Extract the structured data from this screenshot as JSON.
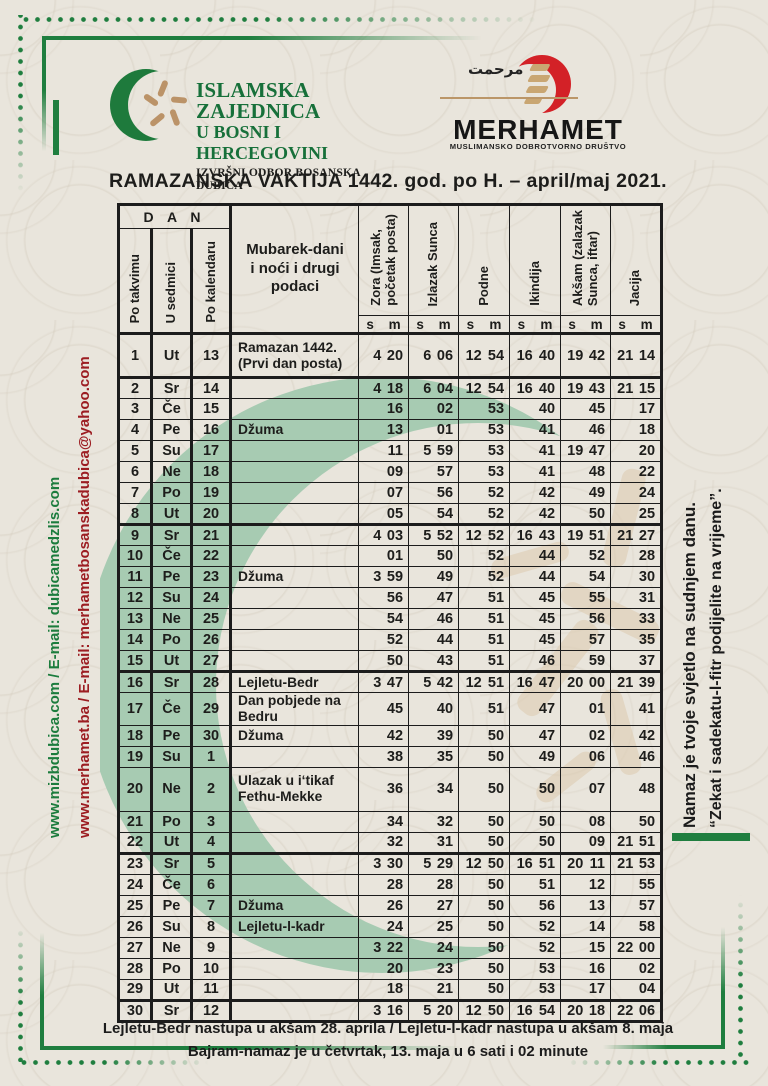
{
  "colors": {
    "page_bg": "#e9e5dc",
    "border_green": "#1f7e3f",
    "logo_green": "#1e7a3c",
    "watermark_green": "#a7cbb2",
    "merhamet_red": "#d32127",
    "tan": "#bb9668",
    "maroon_text": "#9c1d22",
    "green_text": "#1c7c3d",
    "ink": "#1d1d1b"
  },
  "header": {
    "org_line1": "ISLAMSKA ZAJEDNICA",
    "org_line2": "U BOSNI I HERCEGOVINI",
    "org_line3": "IZVRŠNI ODBOR BOSANSKA DUBICA",
    "merhamet_arabic": "مرحمت",
    "merhamet_name": "MERHAMET",
    "merhamet_sub": "MUSLIMANSKO DOBROTVORNO DRUŠTVO",
    "title": "RAMAZANSKA VAKTIJA 1442. god. po H. – april/maj 2021."
  },
  "side_left": {
    "green_text": "www.mizbdubica.com / E-mail: dubicamedzlis.com",
    "red_text": "www.merhamet.ba / E-mail: merhametbosanskadubica@yahoo.com"
  },
  "side_right": {
    "line1": "Namaz je tvoje svjetlo na sudnjem danu.",
    "line2": "“Zekat i sadekatu-l-fitr podijelite na vrijeme”."
  },
  "table": {
    "dan_header": "D A N",
    "day_cols": [
      "Po takvimu",
      "U sedmici",
      "Po kalendaru"
    ],
    "notes_header": "Mubarek-dani\ni noći i drugi\npodaci",
    "time_cols": [
      "Zora (Imsak,\npočetak posta)",
      "Izlazak Sunca",
      "Podne",
      "Ikindija",
      "Akšam (zalazak\nSunca, iftar)",
      "Jacija"
    ],
    "sub_s": "s",
    "sub_m": "m",
    "rows": [
      {
        "t": "1",
        "d": "Ut",
        "k": "13",
        "note": "Ramazan 1442.\n(Prvi dan posta)",
        "tall": true,
        "sep": false,
        "times": [
          "4",
          "20",
          "6",
          "06",
          "12",
          "54",
          "16",
          "40",
          "19",
          "42",
          "21",
          "14"
        ]
      },
      {
        "t": "2",
        "d": "Sr",
        "k": "14",
        "note": "",
        "sep": true,
        "times": [
          "4",
          "18",
          "6",
          "04",
          "12",
          "54",
          "16",
          "40",
          "19",
          "43",
          "21",
          "15"
        ]
      },
      {
        "t": "3",
        "d": "Če",
        "k": "15",
        "note": "",
        "times": [
          "",
          "16",
          "",
          "02",
          "",
          "53",
          "",
          "40",
          "",
          "45",
          "",
          "17"
        ]
      },
      {
        "t": "4",
        "d": "Pe",
        "k": "16",
        "note": "Džuma",
        "times": [
          "",
          "13",
          "",
          "01",
          "",
          "53",
          "",
          "41",
          "",
          "46",
          "",
          "18"
        ]
      },
      {
        "t": "5",
        "d": "Su",
        "k": "17",
        "note": "",
        "times": [
          "",
          "11",
          "5",
          "59",
          "",
          "53",
          "",
          "41",
          "19",
          "47",
          "",
          "20"
        ]
      },
      {
        "t": "6",
        "d": "Ne",
        "k": "18",
        "note": "",
        "times": [
          "",
          "09",
          "",
          "57",
          "",
          "53",
          "",
          "41",
          "",
          "48",
          "",
          "22"
        ]
      },
      {
        "t": "7",
        "d": "Po",
        "k": "19",
        "note": "",
        "times": [
          "",
          "07",
          "",
          "56",
          "",
          "52",
          "",
          "42",
          "",
          "49",
          "",
          "24"
        ]
      },
      {
        "t": "8",
        "d": "Ut",
        "k": "20",
        "note": "",
        "times": [
          "",
          "05",
          "",
          "54",
          "",
          "52",
          "",
          "42",
          "",
          "50",
          "",
          "25"
        ]
      },
      {
        "t": "9",
        "d": "Sr",
        "k": "21",
        "note": "",
        "sep": true,
        "times": [
          "4",
          "03",
          "5",
          "52",
          "12",
          "52",
          "16",
          "43",
          "19",
          "51",
          "21",
          "27"
        ]
      },
      {
        "t": "10",
        "d": "Če",
        "k": "22",
        "note": "",
        "times": [
          "",
          "01",
          "",
          "50",
          "",
          "52",
          "",
          "44",
          "",
          "52",
          "",
          "28"
        ]
      },
      {
        "t": "11",
        "d": "Pe",
        "k": "23",
        "note": "Džuma",
        "times": [
          "3",
          "59",
          "",
          "49",
          "",
          "52",
          "",
          "44",
          "",
          "54",
          "",
          "30"
        ]
      },
      {
        "t": "12",
        "d": "Su",
        "k": "24",
        "note": "",
        "times": [
          "",
          "56",
          "",
          "47",
          "",
          "51",
          "",
          "45",
          "",
          "55",
          "",
          "31"
        ]
      },
      {
        "t": "13",
        "d": "Ne",
        "k": "25",
        "note": "",
        "times": [
          "",
          "54",
          "",
          "46",
          "",
          "51",
          "",
          "45",
          "",
          "56",
          "",
          "33"
        ]
      },
      {
        "t": "14",
        "d": "Po",
        "k": "26",
        "note": "",
        "times": [
          "",
          "52",
          "",
          "44",
          "",
          "51",
          "",
          "45",
          "",
          "57",
          "",
          "35"
        ]
      },
      {
        "t": "15",
        "d": "Ut",
        "k": "27",
        "note": "",
        "times": [
          "",
          "50",
          "",
          "43",
          "",
          "51",
          "",
          "46",
          "",
          "59",
          "",
          "37"
        ]
      },
      {
        "t": "16",
        "d": "Sr",
        "k": "28",
        "note": "Lejletu-Bedr",
        "sep": true,
        "times": [
          "3",
          "47",
          "5",
          "42",
          "12",
          "51",
          "16",
          "47",
          "20",
          "00",
          "21",
          "39"
        ]
      },
      {
        "t": "17",
        "d": "Če",
        "k": "29",
        "note": "Dan pobjede na Bedru",
        "times": [
          "",
          "45",
          "",
          "40",
          "",
          "51",
          "",
          "47",
          "",
          "01",
          "",
          "41"
        ]
      },
      {
        "t": "18",
        "d": "Pe",
        "k": "30",
        "note": "Džuma",
        "times": [
          "",
          "42",
          "",
          "39",
          "",
          "50",
          "",
          "47",
          "",
          "02",
          "",
          "42"
        ]
      },
      {
        "t": "19",
        "d": "Su",
        "k": "1",
        "note": "",
        "times": [
          "",
          "38",
          "",
          "35",
          "",
          "50",
          "",
          "49",
          "",
          "06",
          "",
          "46"
        ]
      },
      {
        "t": "20",
        "d": "Ne",
        "k": "2",
        "note": "Ulazak u i‘tikaf\nFethu-Mekke",
        "tall": true,
        "times": [
          "",
          "36",
          "",
          "34",
          "",
          "50",
          "",
          "50",
          "",
          "07",
          "",
          "48"
        ]
      },
      {
        "t": "21",
        "d": "Po",
        "k": "3",
        "note": "",
        "times": [
          "",
          "34",
          "",
          "32",
          "",
          "50",
          "",
          "50",
          "",
          "08",
          "",
          "50"
        ]
      },
      {
        "t": "22",
        "d": "Ut",
        "k": "4",
        "note": "",
        "times": [
          "",
          "32",
          "",
          "31",
          "",
          "50",
          "",
          "50",
          "",
          "09",
          "21",
          "51"
        ]
      },
      {
        "t": "23",
        "d": "Sr",
        "k": "5",
        "note": "",
        "sep": true,
        "times": [
          "3",
          "30",
          "5",
          "29",
          "12",
          "50",
          "16",
          "51",
          "20",
          "11",
          "21",
          "53"
        ]
      },
      {
        "t": "24",
        "d": "Če",
        "k": "6",
        "note": "",
        "times": [
          "",
          "28",
          "",
          "28",
          "",
          "50",
          "",
          "51",
          "",
          "12",
          "",
          "55"
        ]
      },
      {
        "t": "25",
        "d": "Pe",
        "k": "7",
        "note": "Džuma",
        "times": [
          "",
          "26",
          "",
          "27",
          "",
          "50",
          "",
          "56",
          "",
          "13",
          "",
          "57"
        ]
      },
      {
        "t": "26",
        "d": "Su",
        "k": "8",
        "note": "Lejletu-l-kadr",
        "times": [
          "",
          "24",
          "",
          "25",
          "",
          "50",
          "",
          "52",
          "",
          "14",
          "",
          "58"
        ]
      },
      {
        "t": "27",
        "d": "Ne",
        "k": "9",
        "note": "",
        "times": [
          "3",
          "22",
          "",
          "24",
          "",
          "50",
          "",
          "52",
          "",
          "15",
          "22",
          "00"
        ]
      },
      {
        "t": "28",
        "d": "Po",
        "k": "10",
        "note": "",
        "times": [
          "",
          "20",
          "",
          "23",
          "",
          "50",
          "",
          "53",
          "",
          "16",
          "",
          "02"
        ]
      },
      {
        "t": "29",
        "d": "Ut",
        "k": "11",
        "note": "",
        "times": [
          "",
          "18",
          "",
          "21",
          "",
          "50",
          "",
          "53",
          "",
          "17",
          "",
          "04"
        ]
      },
      {
        "t": "30",
        "d": "Sr",
        "k": "12",
        "note": "",
        "sep": true,
        "times": [
          "3",
          "16",
          "5",
          "20",
          "12",
          "50",
          "16",
          "54",
          "20",
          "18",
          "22",
          "06"
        ]
      }
    ]
  },
  "footer": {
    "line1": "Lejletu-Bedr nastupa u akšam 28. aprila / Lejletu-l-kadr nastupa u akšam 8. maja",
    "line2": "Bajram-namaz je u četvrtak, 13. maja u 6 sati i 02 minute"
  }
}
